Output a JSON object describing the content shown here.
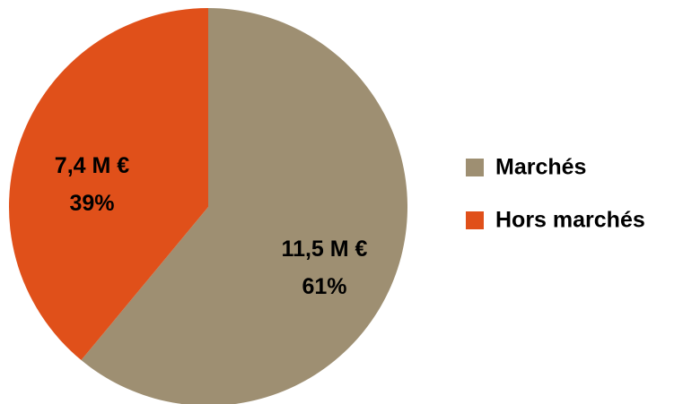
{
  "chart_data": {
    "type": "pie",
    "categories": [
      "Marchés",
      "Hors marchés"
    ],
    "values": [
      61,
      39
    ],
    "value_labels": [
      "61%",
      "39%"
    ],
    "amount_labels": [
      "11,5 M €",
      "7,4 M €"
    ],
    "colors": [
      "#9e8f72",
      "#e0501a"
    ],
    "legend": "right"
  }
}
